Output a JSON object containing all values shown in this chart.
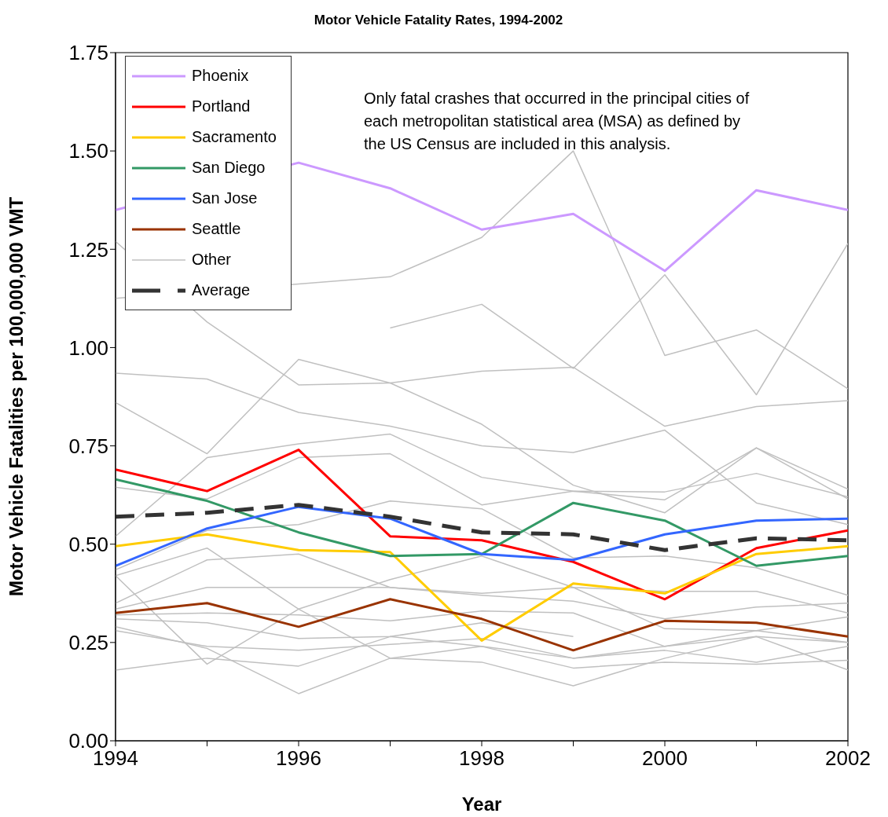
{
  "chart_data": {
    "type": "line",
    "title": "Motor Vehicle Fatality Rates, 1994-2002",
    "xlabel": "Year",
    "ylabel": "Motor Vehicle Fatalities per 100,000,000 VMT",
    "annotations": [
      "Only fatal crashes that occurred in the principal cities of each metropolitan statistical area (MSA) as defined by the US Census are included in this analysis."
    ],
    "x": [
      1994,
      1995,
      1996,
      1997,
      1998,
      1999,
      2000,
      2001,
      2002
    ],
    "xlim": [
      1994,
      2002
    ],
    "xticks": [
      1994,
      {
        "value": 1995,
        "label": null
      },
      1996,
      {
        "value": 1997,
        "label": null
      },
      1998,
      {
        "value": 1999,
        "label": null
      },
      2000,
      {
        "value": 2001,
        "label": null
      },
      2002
    ],
    "ylim": [
      0,
      1.75
    ],
    "yticks": [
      {
        "value": 0,
        "label": "0.00"
      },
      {
        "value": 0.25,
        "label": "0.25"
      },
      {
        "value": 0.5,
        "label": "0.50"
      },
      {
        "value": 0.75,
        "label": "0.75"
      },
      {
        "value": 1,
        "label": "1.00"
      },
      {
        "value": 1.25,
        "label": "1.25"
      },
      {
        "value": 1.5,
        "label": "1.50"
      },
      {
        "value": 1.75,
        "label": "1.75"
      }
    ],
    "grid": false,
    "legend": "top left",
    "marker": "none",
    "series": [
      {
        "name": "Phoenix",
        "color": "#cc99ff",
        "values": [
          1.35,
          null,
          1.47,
          1.405,
          1.3,
          1.34,
          1.195,
          1.4,
          1.35
        ]
      },
      {
        "name": "Portland",
        "color": "#ff0000",
        "values": [
          0.69,
          0.635,
          0.74,
          0.52,
          0.51,
          0.455,
          0.36,
          0.49,
          0.535
        ]
      },
      {
        "name": "Sacramento",
        "color": "#ffcc00",
        "values": [
          0.495,
          0.525,
          0.485,
          0.48,
          0.255,
          0.4,
          0.375,
          0.475,
          0.495
        ]
      },
      {
        "name": "San Diego",
        "color": "#339966",
        "values": [
          0.665,
          0.61,
          0.53,
          0.47,
          0.475,
          0.605,
          0.56,
          0.445,
          0.47
        ]
      },
      {
        "name": "San Jose",
        "color": "#3366ff",
        "values": [
          0.445,
          0.54,
          0.595,
          0.565,
          0.475,
          0.46,
          0.525,
          0.56,
          0.565
        ]
      },
      {
        "name": "Seattle",
        "color": "#993300",
        "values": [
          0.325,
          0.35,
          0.29,
          0.36,
          0.31,
          0.23,
          0.305,
          0.3,
          0.265
        ]
      },
      {
        "name": "Other",
        "color": "#c0c0c0",
        "values": [
          1.27,
          1.065,
          0.905,
          0.91,
          0.94,
          0.95,
          0.8,
          0.85,
          0.865
        ]
      },
      {
        "name": "Average",
        "color": "#333333",
        "line_style": "dashed",
        "values": [
          0.57,
          0.58,
          0.6,
          0.57,
          0.53,
          0.525,
          0.485,
          0.515,
          0.51
        ]
      },
      {
        "color": "#c0c0c0",
        "values": [
          1.125,
          null,
          null,
          1.18,
          1.28,
          1.5,
          0.98,
          1.045,
          0.895
        ]
      },
      {
        "color": "#c0c0c0",
        "values": [
          null,
          null,
          null,
          1.05,
          1.11,
          0.947,
          1.185,
          0.88,
          1.265
        ]
      },
      {
        "color": "#c0c0c0",
        "values": [
          0.935,
          0.92,
          0.835,
          0.8,
          0.75,
          0.733,
          0.79,
          0.605,
          0.55
        ]
      },
      {
        "color": "#c0c0c0",
        "values": [
          0.86,
          0.73,
          0.97,
          0.91,
          0.805,
          0.65,
          0.58,
          0.745,
          0.615
        ]
      },
      {
        "color": "#c0c0c0",
        "values": [
          0.645,
          0.615,
          0.72,
          0.73,
          0.6,
          0.635,
          0.633,
          0.68,
          0.62
        ]
      },
      {
        "color": "#c0c0c0",
        "values": [
          0.52,
          0.72,
          0.755,
          0.78,
          0.67,
          0.635,
          0.613,
          0.745,
          0.64
        ]
      },
      {
        "color": "#c0c0c0",
        "values": [
          0.435,
          0.535,
          0.55,
          0.61,
          0.59,
          0.465,
          0.47,
          0.44,
          0.37
        ]
      },
      {
        "color": "#c0c0c0",
        "values": [
          0.42,
          0.49,
          0.335,
          0.41,
          0.47,
          0.39,
          0.38,
          0.38,
          0.325
        ]
      },
      {
        "color": "#c0c0c0",
        "values": [
          0.35,
          0.46,
          0.475,
          0.39,
          0.37,
          0.355,
          0.31,
          0.34,
          0.35
        ]
      },
      {
        "color": "#c0c0c0",
        "values": [
          0.335,
          0.39,
          0.39,
          0.39,
          0.375,
          0.39,
          0.285,
          0.28,
          0.315
        ]
      },
      {
        "color": "#c0c0c0",
        "values": [
          0.32,
          0.325,
          0.32,
          0.305,
          0.33,
          0.325,
          0.24,
          0.265,
          0.25
        ]
      },
      {
        "color": "#c0c0c0",
        "values": [
          0.31,
          0.3,
          0.26,
          0.265,
          0.3,
          0.265,
          null,
          null,
          null
        ]
      },
      {
        "color": "#c0c0c0",
        "values": [
          0.28,
          0.24,
          0.23,
          0.245,
          0.26,
          0.21,
          0.23,
          0.2,
          0.24
        ]
      },
      {
        "color": "#c0c0c0",
        "values": [
          0.18,
          0.21,
          0.19,
          0.265,
          0.24,
          0.185,
          0.2,
          0.195,
          0.205
        ]
      },
      {
        "color": "#c0c0c0",
        "values": [
          0.42,
          0.195,
          0.335,
          0.21,
          0.2,
          0.14,
          0.21,
          0.265,
          0.18
        ]
      },
      {
        "color": "#c0c0c0",
        "values": [
          0.29,
          0.235,
          0.12,
          0.21,
          0.24,
          0.21,
          0.24,
          0.28,
          0.25
        ]
      }
    ]
  }
}
